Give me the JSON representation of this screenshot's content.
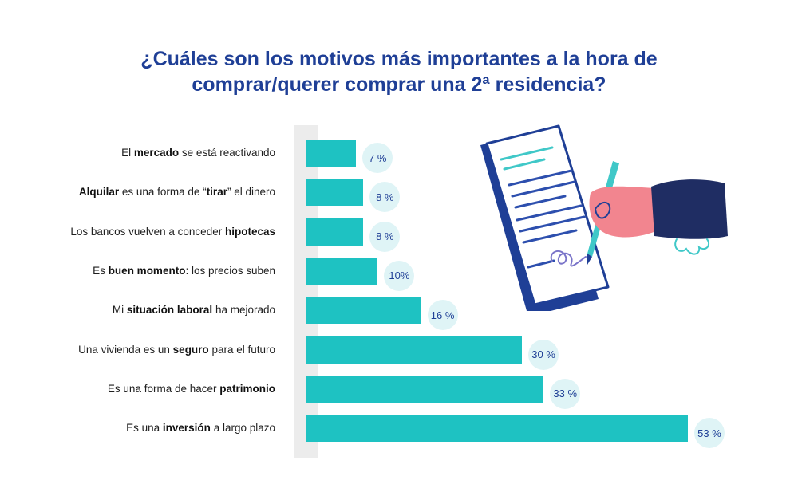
{
  "title_line1": "¿Cuáles son los motivos más importantes a la hora de",
  "title_line2": "comprar/querer comprar una 2ª residencia?",
  "colors": {
    "title": "#1f3f96",
    "bar": "#1ec2c2",
    "bubble": "#dff4f6",
    "band": "#ececec"
  },
  "icons": [
    "document-signing-illustration"
  ],
  "chart_data": {
    "type": "bar",
    "orientation": "horizontal",
    "title": "¿Cuáles son los motivos más importantes a la hora de comprar/querer comprar una 2ª residencia?",
    "categories": [
      "El mercado se está reactivando",
      "Alquilar es una forma de “tirar” el dinero",
      "Los bancos vuelven a conceder hipotecas",
      "Es buen momento: los precios suben",
      "Mi situación laboral ha mejorado",
      "Una vivienda es un seguro para el futuro",
      "Es una forma de hacer patrimonio",
      "Es una inversión a largo plazo"
    ],
    "label_parts": [
      [
        [
          "El ",
          false
        ],
        [
          "mercado",
          true
        ],
        [
          " se está reactivando",
          false
        ]
      ],
      [
        [
          "Alquilar",
          true
        ],
        [
          " es una forma de “",
          false
        ],
        [
          "tirar",
          true
        ],
        [
          "” el dinero",
          false
        ]
      ],
      [
        [
          "Los bancos vuelven a conceder ",
          false
        ],
        [
          "hipotecas",
          true
        ]
      ],
      [
        [
          "Es ",
          false
        ],
        [
          "buen momento",
          true
        ],
        [
          ": los precios suben",
          false
        ]
      ],
      [
        [
          "Mi ",
          false
        ],
        [
          "situación laboral",
          true
        ],
        [
          " ha mejorado",
          false
        ]
      ],
      [
        [
          "Una vivienda es un ",
          false
        ],
        [
          "seguro",
          true
        ],
        [
          " para el futuro",
          false
        ]
      ],
      [
        [
          "Es una forma de hacer ",
          false
        ],
        [
          "patrimonio",
          true
        ]
      ],
      [
        [
          "Es una ",
          false
        ],
        [
          "inversión",
          true
        ],
        [
          " a largo plazo",
          false
        ]
      ]
    ],
    "values": [
      7,
      8,
      8,
      10,
      16,
      30,
      33,
      53
    ],
    "value_labels": [
      "7 %",
      "8 %",
      "8 %",
      "10%",
      "16 %",
      "30 %",
      "33 %",
      "53 %"
    ],
    "unit": "%",
    "xlim": [
      0,
      53
    ],
    "grid": false,
    "legend": "none"
  }
}
